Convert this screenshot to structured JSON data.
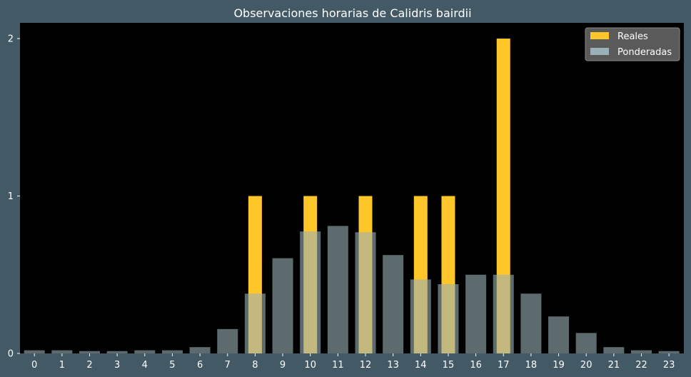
{
  "chart_data": {
    "type": "bar",
    "title": "Observaciones horarias de Calidris bairdii",
    "xlabel": "",
    "ylabel": "",
    "categories": [
      "0",
      "1",
      "2",
      "3",
      "4",
      "5",
      "6",
      "7",
      "8",
      "9",
      "10",
      "11",
      "12",
      "13",
      "14",
      "15",
      "16",
      "17",
      "18",
      "19",
      "20",
      "21",
      "22",
      "23"
    ],
    "ylim": [
      0,
      2.1
    ],
    "yticks": [
      0,
      1,
      2
    ],
    "grid": false,
    "legend_position": "top-right",
    "series": [
      {
        "name": "Reales",
        "color": "#ffc629",
        "values": [
          0,
          0,
          0,
          0,
          0,
          0,
          0,
          0,
          1,
          0,
          1,
          0,
          1,
          0,
          1,
          1,
          0,
          2,
          0,
          0,
          0,
          0,
          0,
          0
        ]
      },
      {
        "name": "Ponderadas",
        "color": "#9bb0b8",
        "values": [
          0.02,
          0.02,
          0.015,
          0.015,
          0.02,
          0.02,
          0.04,
          0.155,
          0.38,
          0.605,
          0.775,
          0.81,
          0.77,
          0.625,
          0.47,
          0.44,
          0.5,
          0.5,
          0.38,
          0.235,
          0.13,
          0.04,
          0.02,
          0.015
        ]
      }
    ]
  }
}
